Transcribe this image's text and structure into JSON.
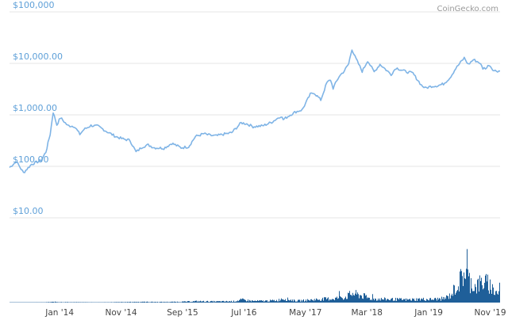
{
  "watermark": "CoinGecko.com",
  "colors": {
    "price_line": "#7fb4e6",
    "volume_bars": "#1f5f99",
    "grid": "#e6e6e6",
    "y_tick_text": "#5fa0d8",
    "x_tick_text": "#444444"
  },
  "chart_data": [
    {
      "type": "line",
      "title": "",
      "xlabel": "",
      "ylabel": "",
      "y_scale": "log",
      "ylim": [
        10,
        100000
      ],
      "xlim": [
        "2013-04-28",
        "2019-12-20"
      ],
      "grid": true,
      "legend": "none",
      "y_ticks": [
        {
          "value": 100000,
          "label": "$100,000"
        },
        {
          "value": 10000,
          "label": "$10,000.00"
        },
        {
          "value": 1000,
          "label": "$1,000.00"
        },
        {
          "value": 100,
          "label": "$100.00"
        },
        {
          "value": 10,
          "label": "$10.00"
        }
      ],
      "x_ticks": [
        {
          "date": "2014-01-01",
          "label": "Jan '14"
        },
        {
          "date": "2014-11-01",
          "label": "Nov '14"
        },
        {
          "date": "2015-09-01",
          "label": "Sep '15"
        },
        {
          "date": "2016-07-01",
          "label": "Jul '16"
        },
        {
          "date": "2017-05-01",
          "label": "May '17"
        },
        {
          "date": "2018-03-01",
          "label": "Mar '18"
        },
        {
          "date": "2019-01-01",
          "label": "Jan '19"
        },
        {
          "date": "2019-11-01",
          "label": "Nov '19"
        }
      ],
      "series": [
        {
          "x": [
            "2013-04-28",
            "2013-06-01",
            "2013-07-06",
            "2013-08-15",
            "2013-10-01",
            "2013-10-25",
            "2013-11-15",
            "2013-11-30",
            "2013-12-18",
            "2014-01-05",
            "2014-02-10",
            "2014-03-15",
            "2014-04-11",
            "2014-05-01",
            "2014-06-05",
            "2014-07-10",
            "2014-08-20",
            "2014-10-05",
            "2014-11-10",
            "2014-12-15",
            "2015-01-14",
            "2015-02-15",
            "2015-03-15",
            "2015-04-15",
            "2015-06-01",
            "2015-07-10",
            "2015-08-25",
            "2015-10-01",
            "2015-11-04",
            "2015-12-15",
            "2016-01-15",
            "2016-02-15",
            "2016-03-15",
            "2016-05-01",
            "2016-06-17",
            "2016-07-15",
            "2016-08-15",
            "2016-10-01",
            "2016-11-15",
            "2016-12-31",
            "2017-01-11",
            "2017-02-15",
            "2017-03-15",
            "2017-04-15",
            "2017-05-25",
            "2017-06-12",
            "2017-07-16",
            "2017-08-15",
            "2017-09-02",
            "2017-09-15",
            "2017-10-15",
            "2017-11-10",
            "2017-12-01",
            "2017-12-17",
            "2018-01-01",
            "2018-02-06",
            "2018-03-05",
            "2018-04-06",
            "2018-05-05",
            "2018-06-29",
            "2018-07-24",
            "2018-09-01",
            "2018-10-15",
            "2018-11-25",
            "2018-12-15",
            "2019-01-15",
            "2019-02-15",
            "2019-03-15",
            "2019-04-15",
            "2019-05-15",
            "2019-06-26",
            "2019-07-16",
            "2019-08-10",
            "2019-09-10",
            "2019-09-26",
            "2019-10-15",
            "2019-10-26",
            "2019-11-20",
            "2019-12-20"
          ],
          "y": [
            95,
            125,
            75,
            110,
            130,
            190,
            420,
            1130,
            640,
            880,
            620,
            600,
            420,
            520,
            620,
            600,
            480,
            380,
            340,
            320,
            190,
            240,
            260,
            230,
            225,
            280,
            230,
            240,
            380,
            430,
            400,
            390,
            415,
            450,
            700,
            670,
            590,
            610,
            720,
            950,
            810,
            1000,
            1150,
            1250,
            2500,
            2700,
            1950,
            4200,
            4800,
            3300,
            5600,
            7200,
            9800,
            19000,
            13500,
            7000,
            11300,
            6800,
            9600,
            6100,
            8200,
            7100,
            6400,
            3800,
            3300,
            3600,
            3700,
            4000,
            5200,
            8000,
            12800,
            9500,
            11800,
            10300,
            8000,
            8200,
            9500,
            7200,
            7100
          ]
        }
      ]
    },
    {
      "type": "bar",
      "title": "",
      "xlabel": "",
      "ylabel": "",
      "ylim": [
        0,
        45
      ],
      "series": [
        {
          "x": [
            "2013-04-28",
            "2013-06-15",
            "2013-08-15",
            "2013-10-15",
            "2013-12-05",
            "2014-01-15",
            "2014-03-15",
            "2014-05-15",
            "2014-07-15",
            "2014-09-15",
            "2014-11-15",
            "2015-01-15",
            "2015-03-15",
            "2015-05-15",
            "2015-07-15",
            "2015-09-15",
            "2015-11-05",
            "2016-01-15",
            "2016-03-15",
            "2016-05-15",
            "2016-06-17",
            "2016-08-15",
            "2016-10-15",
            "2016-12-15",
            "2017-01-05",
            "2017-03-15",
            "2017-05-15",
            "2017-07-15",
            "2017-09-15",
            "2017-11-15",
            "2017-12-17",
            "2018-01-10",
            "2018-02-06",
            "2018-03-15",
            "2018-05-15",
            "2018-07-15",
            "2018-09-15",
            "2018-11-20",
            "2019-01-15",
            "2019-03-15",
            "2019-04-15",
            "2019-05-15",
            "2019-06-01",
            "2019-06-26",
            "2019-07-16",
            "2019-08-15",
            "2019-09-25",
            "2019-10-26",
            "2019-11-20",
            "2019-12-20"
          ],
          "values": [
            0.1,
            0.1,
            0.2,
            0.2,
            0.6,
            0.4,
            0.3,
            0.3,
            0.2,
            0.3,
            0.4,
            0.6,
            0.6,
            0.5,
            0.6,
            0.8,
            1.2,
            1.0,
            1.0,
            1.2,
            2.5,
            1.4,
            1.5,
            2.0,
            3.8,
            1.5,
            2.2,
            3.0,
            3.5,
            5.0,
            8.0,
            7.0,
            6.0,
            3.5,
            3.0,
            2.8,
            2.5,
            3.0,
            2.8,
            3.5,
            6.0,
            14.0,
            18.0,
            28.0,
            20.0,
            14.0,
            18.0,
            16.0,
            10.0,
            8.0
          ]
        }
      ]
    }
  ]
}
